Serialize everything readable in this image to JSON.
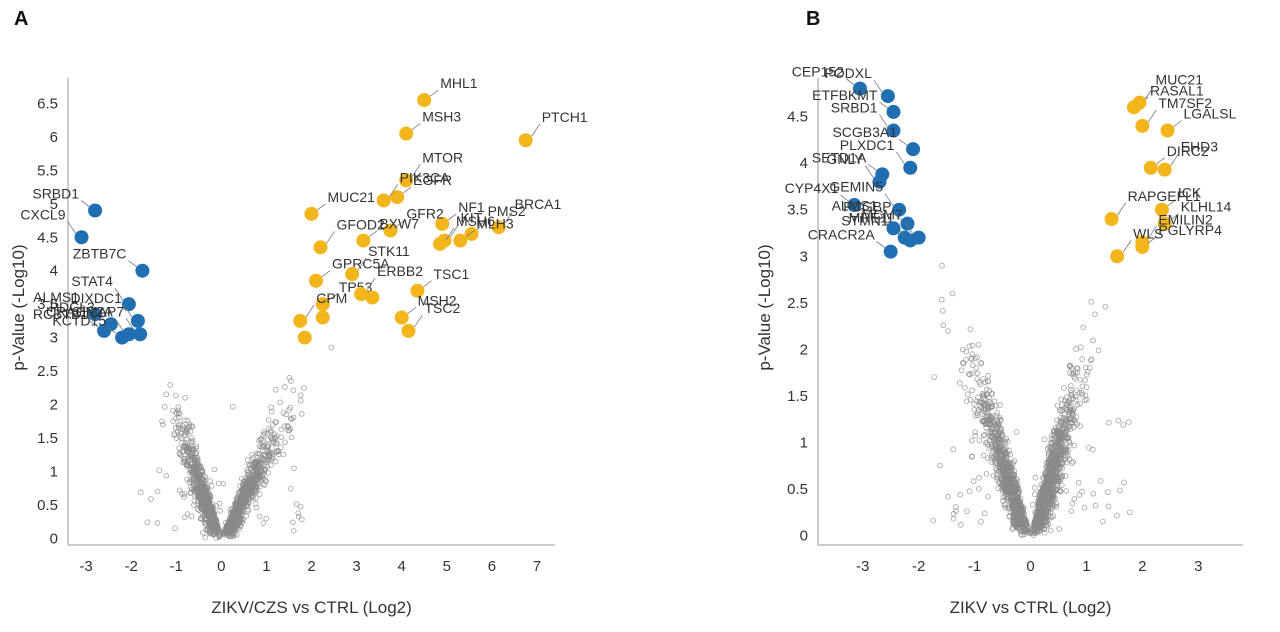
{
  "panels": [
    {
      "letter": "A",
      "chart_data": {
        "type": "scatter",
        "subtype": "volcano",
        "xlabel": "ZIKV/CZS vs CTRL (Log2)",
        "ylabel": "p-Value (-Log10)",
        "xlim": [
          -3.4,
          7.4
        ],
        "ylim": [
          -0.1,
          7.0
        ],
        "x_ticks": [
          "-3",
          "-2",
          "-1",
          "0",
          "1",
          "2",
          "3",
          "4",
          "5",
          "6",
          "7"
        ],
        "y_ticks": [
          "0",
          "0.5",
          "1",
          "1.5",
          "2",
          "2.5",
          "3",
          "3.5",
          "4",
          "4.5",
          "5",
          "5.5",
          "6",
          "6.5"
        ],
        "background_cloud": {
          "color": "#8a8a8a",
          "description_hidden": true
        },
        "series": [
          {
            "color": "#1f6fb2",
            "points": [
              {
                "gene": "SRBD1",
                "x": -2.8,
                "y": 4.9
              },
              {
                "gene": "CXCL9",
                "x": -3.1,
                "y": 4.5
              },
              {
                "gene": "ZBTB7C",
                "x": -1.75,
                "y": 4.0
              },
              {
                "gene": "STAT4",
                "x": -2.05,
                "y": 3.5
              },
              {
                "gene": "PDCL3",
                "x": -2.45,
                "y": 3.2
              },
              {
                "gene": "DIXDC1",
                "x": -1.85,
                "y": 3.25
              },
              {
                "gene": "ALMS1",
                "x": -2.8,
                "y": 3.35
              },
              {
                "gene": "GIMAP7",
                "x": -1.8,
                "y": 3.05
              },
              {
                "gene": "RCBTB1",
                "x": -2.6,
                "y": 3.1
              },
              {
                "gene": "CRACR2A",
                "x": -2.05,
                "y": 3.05
              },
              {
                "gene": "KCTD15",
                "x": -2.2,
                "y": 3.0
              }
            ]
          },
          {
            "color": "#f2b51c",
            "points": [
              {
                "gene": "MHL1",
                "x": 4.5,
                "y": 6.55
              },
              {
                "gene": "PTCH1",
                "x": 6.75,
                "y": 5.95
              },
              {
                "gene": "MSH3",
                "x": 4.1,
                "y": 6.05
              },
              {
                "gene": "MTOR",
                "x": 4.1,
                "y": 5.35
              },
              {
                "gene": "EGFR",
                "x": 3.9,
                "y": 5.1
              },
              {
                "gene": "PIK3CA",
                "x": 3.6,
                "y": 5.05
              },
              {
                "gene": "MUC21",
                "x": 2.0,
                "y": 4.85
              },
              {
                "gene": "BRCA1",
                "x": 6.15,
                "y": 4.65
              },
              {
                "gene": "NF1",
                "x": 4.9,
                "y": 4.7
              },
              {
                "gene": "KIT",
                "x": 4.95,
                "y": 4.45
              },
              {
                "gene": "GFR2",
                "x": 3.75,
                "y": 4.6
              },
              {
                "gene": "GFOD2",
                "x": 2.2,
                "y": 4.35
              },
              {
                "gene": "BXW7",
                "x": 3.15,
                "y": 4.45
              },
              {
                "gene": "PMS2",
                "x": 5.55,
                "y": 4.55
              },
              {
                "gene": "MLH3",
                "x": 5.3,
                "y": 4.45
              },
              {
                "gene": "MSH6",
                "x": 4.85,
                "y": 4.4
              },
              {
                "gene": "GPRC5A",
                "x": 2.1,
                "y": 3.85
              },
              {
                "gene": "STK11",
                "x": 2.9,
                "y": 3.95
              },
              {
                "gene": "TP53",
                "x": 2.25,
                "y": 3.5
              },
              {
                "gene": "CPM",
                "x": 1.75,
                "y": 3.25
              },
              {
                "gene": "TSC1",
                "x": 4.35,
                "y": 3.7
              },
              {
                "gene": "ERBB2",
                "x": 3.1,
                "y": 3.65
              },
              {
                "gene": "MSH2",
                "x": 4.0,
                "y": 3.3
              },
              {
                "gene": "TSC2",
                "x": 4.15,
                "y": 3.1
              },
              {
                "gene": "",
                "x": 2.25,
                "y": 3.3
              },
              {
                "gene": "",
                "x": 1.85,
                "y": 3.0
              },
              {
                "gene": "",
                "x": 3.35,
                "y": 3.6
              }
            ]
          }
        ]
      }
    },
    {
      "letter": "B",
      "chart_data": {
        "type": "scatter",
        "subtype": "volcano",
        "xlabel": "ZIKV vs CTRL (Log2)",
        "ylabel": "p-Value (-Log10)",
        "xlim": [
          -3.8,
          3.8
        ],
        "ylim": [
          -0.1,
          5.0
        ],
        "x_ticks": [
          "-3",
          "-2",
          "-1",
          "0",
          "1",
          "2",
          "3"
        ],
        "y_ticks": [
          "0",
          "0.5",
          "1",
          "1.5",
          "2",
          "2.5",
          "3",
          "3.5",
          "4",
          "4.5"
        ],
        "background_cloud": {
          "color": "#8a8a8a"
        },
        "series": [
          {
            "color": "#1f6fb2",
            "points": [
              {
                "gene": "CEP152",
                "x": -3.05,
                "y": 4.8
              },
              {
                "gene": "PODXL",
                "x": -2.55,
                "y": 4.72
              },
              {
                "gene": "ETFBKMT",
                "x": -2.45,
                "y": 4.55
              },
              {
                "gene": "SRBD1",
                "x": -2.45,
                "y": 4.35
              },
              {
                "gene": "SCGB3A1",
                "x": -2.1,
                "y": 4.15
              },
              {
                "gene": "PLXDC1",
                "x": -2.15,
                "y": 3.95
              },
              {
                "gene": "SETD1A",
                "x": -2.65,
                "y": 3.88
              },
              {
                "gene": "GNLY",
                "x": -2.7,
                "y": 3.8
              },
              {
                "gene": "CYP4X1",
                "x": -3.15,
                "y": 3.55
              },
              {
                "gene": "GEMIN5",
                "x": -2.35,
                "y": 3.5
              },
              {
                "gene": "FCGBP",
                "x": -2.2,
                "y": 3.35
              },
              {
                "gene": "MCM7",
                "x": -2.0,
                "y": 3.2
              },
              {
                "gene": "STMN1",
                "x": -2.25,
                "y": 3.2
              },
              {
                "gene": "MRE11",
                "x": -2.15,
                "y": 3.17
              },
              {
                "gene": "CRACR2A",
                "x": -2.5,
                "y": 3.05
              },
              {
                "gene": "ALMS1",
                "x": -2.45,
                "y": 3.3
              }
            ]
          },
          {
            "color": "#f2b51c",
            "points": [
              {
                "gene": "RASAL1",
                "x": 1.85,
                "y": 4.6
              },
              {
                "gene": "MUC21",
                "x": 1.95,
                "y": 4.65
              },
              {
                "gene": "LGALSL",
                "x": 2.45,
                "y": 4.35
              },
              {
                "gene": "TM7SF2",
                "x": 2.0,
                "y": 4.4
              },
              {
                "gene": "DIRC2",
                "x": 2.15,
                "y": 3.95
              },
              {
                "gene": "EHD3",
                "x": 2.4,
                "y": 3.93
              },
              {
                "gene": "ICK",
                "x": 2.35,
                "y": 3.5
              },
              {
                "gene": "RAPGEFL1",
                "x": 1.45,
                "y": 3.4
              },
              {
                "gene": "KLHL14",
                "x": 2.4,
                "y": 3.35
              },
              {
                "gene": "EMILIN2",
                "x": 2.0,
                "y": 3.15
              },
              {
                "gene": "PGLYRP4",
                "x": 2.0,
                "y": 3.1
              },
              {
                "gene": "WLS",
                "x": 1.55,
                "y": 3.0
              }
            ]
          }
        ]
      }
    }
  ]
}
